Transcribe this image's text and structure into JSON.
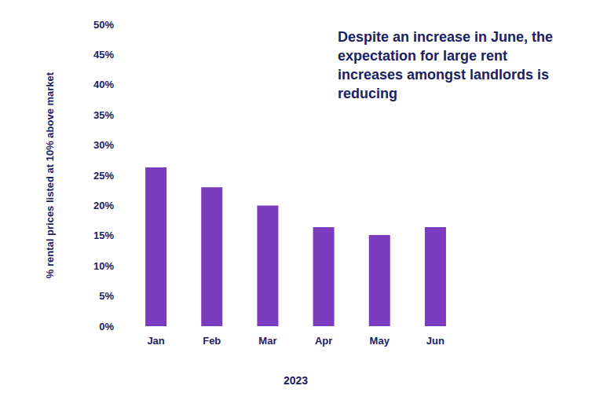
{
  "chart_data": {
    "type": "bar",
    "title": "Despite an increase in June, the expectation for large rent increases amongst landlords is reducing",
    "x_label": "2023",
    "y_label": "% rental prices listed at 10% above market",
    "categories": [
      "Jan",
      "Feb",
      "Mar",
      "Apr",
      "May",
      "Jun"
    ],
    "values": [
      26.3,
      23.0,
      20.0,
      16.4,
      15.1,
      16.4
    ],
    "color": "#7b3bbf",
    "ylim": [
      0,
      50
    ],
    "yticks": [
      {
        "value": 0,
        "label": "0%"
      },
      {
        "value": 5,
        "label": "5%"
      },
      {
        "value": 10,
        "label": "10%"
      },
      {
        "value": 15,
        "label": "15%"
      },
      {
        "value": 20,
        "label": "20%"
      },
      {
        "value": 25,
        "label": "25%"
      },
      {
        "value": 30,
        "label": "30%"
      },
      {
        "value": 35,
        "label": "35%"
      },
      {
        "value": 40,
        "label": "40%"
      },
      {
        "value": 45,
        "label": "45%"
      },
      {
        "value": 50,
        "label": "50%"
      }
    ],
    "grid": false
  }
}
